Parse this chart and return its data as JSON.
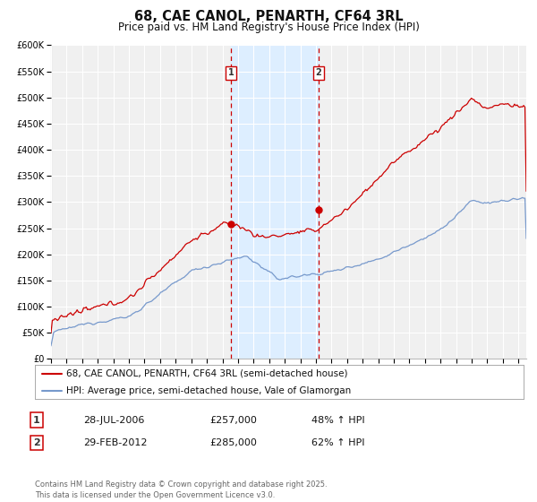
{
  "title": "68, CAE CANOL, PENARTH, CF64 3RL",
  "subtitle": "Price paid vs. HM Land Registry's House Price Index (HPI)",
  "ylim": [
    0,
    600000
  ],
  "yticks": [
    0,
    50000,
    100000,
    150000,
    200000,
    250000,
    300000,
    350000,
    400000,
    450000,
    500000,
    550000,
    600000
  ],
  "xlim_start": 1995,
  "xlim_end": 2025.5,
  "background_color": "#ffffff",
  "plot_bg_color": "#f0f0f0",
  "grid_color": "#ffffff",
  "sale1_date": 2006.54,
  "sale1_price": 257000,
  "sale1_label": "1",
  "sale2_date": 2012.16,
  "sale2_price": 285000,
  "sale2_label": "2",
  "shade_color": "#ddeeff",
  "vline_color": "#cc0000",
  "dot_color": "#cc0000",
  "red_line_color": "#cc0000",
  "blue_line_color": "#7799cc",
  "legend_red_label": "68, CAE CANOL, PENARTH, CF64 3RL (semi-detached house)",
  "legend_blue_label": "HPI: Average price, semi-detached house, Vale of Glamorgan",
  "table_row1": [
    "1",
    "28-JUL-2006",
    "£257,000",
    "48% ↑ HPI"
  ],
  "table_row2": [
    "2",
    "29-FEB-2012",
    "£285,000",
    "62% ↑ HPI"
  ],
  "footer": "Contains HM Land Registry data © Crown copyright and database right 2025.\nThis data is licensed under the Open Government Licence v3.0.",
  "title_fontsize": 10.5,
  "subtitle_fontsize": 8.5,
  "tick_fontsize": 7,
  "legend_fontsize": 7.5,
  "table_fontsize": 8,
  "footer_fontsize": 6
}
